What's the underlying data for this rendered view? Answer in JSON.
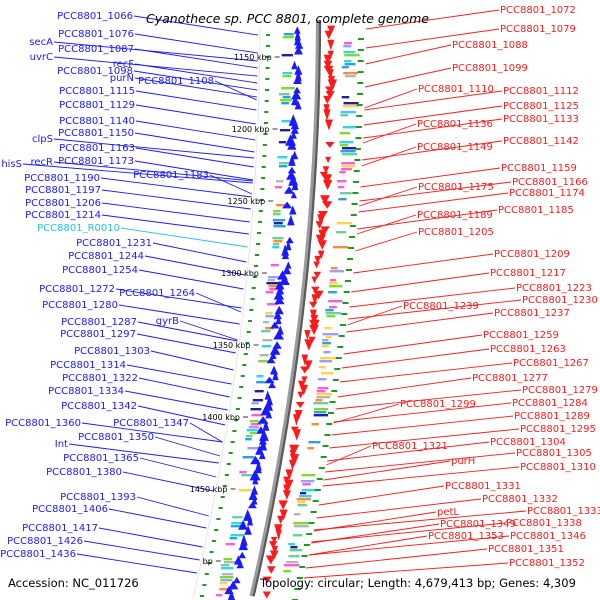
{
  "title": "Cyanothece sp. PCC 8801, complete genome",
  "footer": {
    "accession": "Accession: NC_011726",
    "topology": "Topology: circular; Length: 4,679,413 bp; Genes: 4,309"
  },
  "colors": {
    "forward_genes": "#1a1aff",
    "reverse_genes": "#ff1a1a",
    "rna_genes": "#22c4d8",
    "backbone": "#8c8c8c"
  },
  "ruler": [
    {
      "label": "1150 kbp",
      "kbp": 1150
    },
    {
      "label": "1200 kbp",
      "kbp": 1200
    },
    {
      "label": "1250 kbp",
      "kbp": 1250
    },
    {
      "label": "1300 kbp",
      "kbp": 1300
    },
    {
      "label": "1350 kbp",
      "kbp": 1350
    },
    {
      "label": "1400 kbp",
      "kbp": 1400
    },
    {
      "label": "1450 kbp",
      "kbp": 1450
    },
    {
      "label": "bp",
      "kbp": 1500
    }
  ],
  "left_labels": [
    {
      "text": "PCC8801_1066",
      "kind": "gene"
    },
    {
      "text": "PCC8801_1076",
      "kind": "gene"
    },
    {
      "text": "secA",
      "kind": "gene"
    },
    {
      "text": "PCC8801_1087",
      "kind": "gene"
    },
    {
      "text": "uvrC",
      "kind": "gene"
    },
    {
      "text": "recF",
      "kind": "gene"
    },
    {
      "text": "PCC8801_1098",
      "kind": "gene"
    },
    {
      "text": "purN",
      "kind": "gene"
    },
    {
      "text": "PCC8801_1108",
      "kind": "gene"
    },
    {
      "text": "PCC8801_1115",
      "kind": "gene"
    },
    {
      "text": "PCC8801_1129",
      "kind": "gene"
    },
    {
      "text": "PCC8801_1140",
      "kind": "gene"
    },
    {
      "text": "clpS",
      "kind": "gene"
    },
    {
      "text": "PCC8801_1150",
      "kind": "gene"
    },
    {
      "text": "PCC8801_1163",
      "kind": "gene"
    },
    {
      "text": "hisS",
      "kind": "gene"
    },
    {
      "text": "recR",
      "kind": "gene"
    },
    {
      "text": "PCC8801_1173",
      "kind": "gene"
    },
    {
      "text": "PCC8801_1183",
      "kind": "gene"
    },
    {
      "text": "PCC8801_1190",
      "kind": "gene"
    },
    {
      "text": "PCC8801_1197",
      "kind": "gene"
    },
    {
      "text": "PCC8801_1206",
      "kind": "gene"
    },
    {
      "text": "PCC8801_1214",
      "kind": "gene"
    },
    {
      "text": "PCC8801_R0010",
      "kind": "rna"
    },
    {
      "text": "PCC8801_1231",
      "kind": "gene"
    },
    {
      "text": "PCC8801_1244",
      "kind": "gene"
    },
    {
      "text": "PCC8801_1254",
      "kind": "gene"
    },
    {
      "text": "PCC8801_1264",
      "kind": "gene"
    },
    {
      "text": "PCC8801_1272",
      "kind": "gene"
    },
    {
      "text": "PCC8801_1280",
      "kind": "gene"
    },
    {
      "text": "gyrB",
      "kind": "gene"
    },
    {
      "text": "PCC8801_1287",
      "kind": "gene"
    },
    {
      "text": "PCC8801_1297",
      "kind": "gene"
    },
    {
      "text": "PCC8801_1303",
      "kind": "gene"
    },
    {
      "text": "PCC8801_1314",
      "kind": "gene"
    },
    {
      "text": "PCC8801_1322",
      "kind": "gene"
    },
    {
      "text": "PCC8801_1334",
      "kind": "gene"
    },
    {
      "text": "PCC8801_1342",
      "kind": "gene"
    },
    {
      "text": "PCC8801_1347",
      "kind": "gene"
    },
    {
      "text": "PCC8801_1360",
      "kind": "gene"
    },
    {
      "text": "PCC8801_1350",
      "kind": "gene"
    },
    {
      "text": "Int",
      "kind": "gene"
    },
    {
      "text": "PCC8801_1365",
      "kind": "gene"
    },
    {
      "text": "PCC8801_1380",
      "kind": "gene"
    },
    {
      "text": "PCC8801_1393",
      "kind": "gene"
    },
    {
      "text": "PCC8801_1406",
      "kind": "gene"
    },
    {
      "text": "PCC8801_1417",
      "kind": "gene"
    },
    {
      "text": "PCC8801_1426",
      "kind": "gene"
    },
    {
      "text": "PCC8801_1436",
      "kind": "gene"
    }
  ],
  "right_labels": [
    {
      "text": "PCC8801_1072"
    },
    {
      "text": "PCC8801_1079"
    },
    {
      "text": "PCC8801_1088"
    },
    {
      "text": "PCC8801_1099"
    },
    {
      "text": "PCC8801_1110"
    },
    {
      "text": "PCC8801_1112"
    },
    {
      "text": "PCC8801_1125"
    },
    {
      "text": "PCC8801_1136"
    },
    {
      "text": "PCC8801_1133"
    },
    {
      "text": "PCC8801_1142"
    },
    {
      "text": "PCC8801_1149"
    },
    {
      "text": "PCC8801_1159"
    },
    {
      "text": "PCC8801_1166"
    },
    {
      "text": "PCC8801_1175"
    },
    {
      "text": "PCC8801_1174"
    },
    {
      "text": "PCC8801_1185"
    },
    {
      "text": "PCC8801_1189"
    },
    {
      "text": "PCC8801_1205"
    },
    {
      "text": "PCC8801_1209"
    },
    {
      "text": "PCC8801_1217"
    },
    {
      "text": "PCC8801_1223"
    },
    {
      "text": "PCC8801_1230"
    },
    {
      "text": "PCC8801_1239"
    },
    {
      "text": "PCC8801_1237"
    },
    {
      "text": "PCC8801_1259"
    },
    {
      "text": "PCC8801_1263"
    },
    {
      "text": "PCC8801_1267"
    },
    {
      "text": "PCC8801_1277"
    },
    {
      "text": "PCC8801_1279"
    },
    {
      "text": "PCC8801_1299"
    },
    {
      "text": "PCC8801_1284"
    },
    {
      "text": "PCC8801_1289"
    },
    {
      "text": "PCC8801_1295"
    },
    {
      "text": "PCC8801_1304"
    },
    {
      "text": "PCC8801_1321"
    },
    {
      "text": "PCC8801_1305"
    },
    {
      "text": "purH"
    },
    {
      "text": "PCC8801_1310"
    },
    {
      "text": "PCC8801_1331"
    },
    {
      "text": "PCC8801_1332"
    },
    {
      "text": "petL"
    },
    {
      "text": "PCC8801_1333"
    },
    {
      "text": "PCC8801_1349"
    },
    {
      "text": "PCC8801_1338"
    },
    {
      "text": "PCC8801_1353"
    },
    {
      "text": "PCC8801_1346"
    },
    {
      "text": "PCC8801_1351"
    },
    {
      "text": "PCC8801_1352"
    }
  ]
}
